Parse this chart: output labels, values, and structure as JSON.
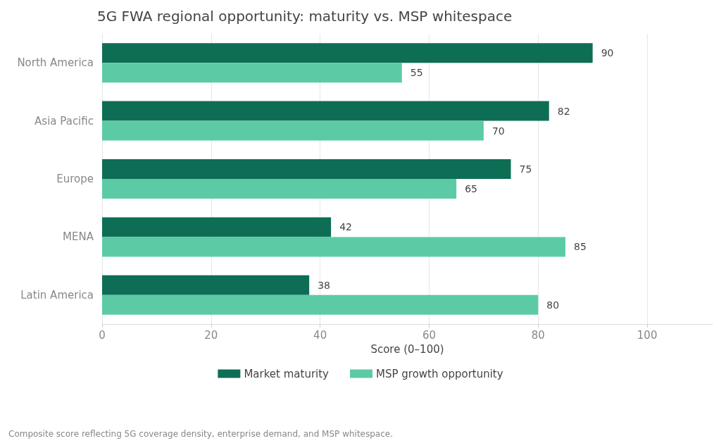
{
  "chart_data": {
    "type": "bar",
    "orientation": "horizontal",
    "title": "5G FWA regional opportunity: maturity vs. MSP whitespace",
    "categories": [
      "North America",
      "Asia Pacific",
      "Europe",
      "MENA",
      "Latin America"
    ],
    "series": [
      {
        "name": "Market maturity",
        "color": "#0e6e55",
        "values": [
          90,
          82,
          75,
          42,
          38
        ]
      },
      {
        "name": "MSP growth opportunity",
        "color": "#5ccba5",
        "values": [
          55,
          70,
          65,
          85,
          80
        ]
      }
    ],
    "xlabel": "Score (0–100)",
    "xlim": [
      0,
      112
    ],
    "xticks": [
      0,
      20,
      40,
      60,
      80,
      100
    ],
    "grid": "x",
    "legend": "bottom",
    "data_labels": true,
    "annotations": [
      "Composite score reflecting 5G coverage density, enterprise demand, and MSP whitespace."
    ]
  }
}
